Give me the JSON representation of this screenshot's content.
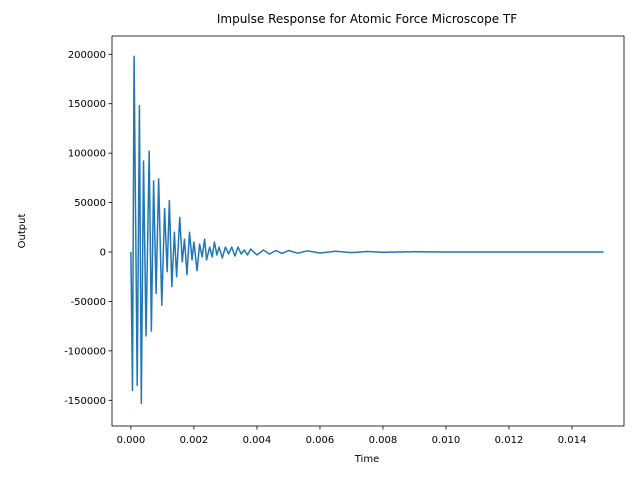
{
  "chart_data": {
    "type": "line",
    "title": "Impulse Response for Atomic Force Microscope TF",
    "xlabel": "Time",
    "ylabel": "Output",
    "x": [
      0,
      5e-05,
      0.0001,
      0.0002,
      0.00027,
      0.00033,
      0.0004,
      0.00048,
      0.00058,
      0.00065,
      0.00072,
      0.0008,
      0.00088,
      0.00098,
      0.00107,
      0.00115,
      0.00122,
      0.0013,
      0.00138,
      0.00145,
      0.00155,
      0.00163,
      0.0017,
      0.00178,
      0.00186,
      0.00194,
      0.002,
      0.0021,
      0.00218,
      0.00226,
      0.00234,
      0.0024,
      0.0025,
      0.00258,
      0.00265,
      0.00273,
      0.0028,
      0.0029,
      0.003,
      0.0031,
      0.0032,
      0.0033,
      0.0034,
      0.0035,
      0.0036,
      0.0037,
      0.0038,
      0.004,
      0.0042,
      0.0044,
      0.0046,
      0.0048,
      0.005,
      0.0053,
      0.0056,
      0.006,
      0.0065,
      0.007,
      0.0075,
      0.008,
      0.009,
      0.01,
      0.015
    ],
    "series": [
      {
        "color": "#1f77b4",
        "values": [
          0,
          -140000,
          198000,
          -135000,
          148000,
          -153000,
          92000,
          -85000,
          102000,
          -80000,
          72000,
          -42000,
          74000,
          -54000,
          44000,
          -20000,
          52000,
          -35000,
          20000,
          -25000,
          35000,
          -10000,
          13000,
          -23000,
          20000,
          -8000,
          10000,
          -19000,
          8000,
          -5000,
          13000,
          -8000,
          5000,
          -5000,
          10000,
          -3000,
          5000,
          -6000,
          5000,
          -2000,
          5000,
          -4000,
          5000,
          -2000,
          2000,
          -3000,
          3000,
          -3000,
          2000,
          -2000,
          1500,
          -1500,
          1500,
          -1200,
          1200,
          -1000,
          800,
          -600,
          500,
          -300,
          200,
          0,
          0
        ]
      }
    ],
    "xlim": [
      -0.0006,
      0.01565
    ],
    "ylim": [
      -176000,
      218500
    ],
    "xticks": [
      {
        "value": 0,
        "label": "0.000"
      },
      {
        "value": 0.002,
        "label": "0.002"
      },
      {
        "value": 0.004,
        "label": "0.004"
      },
      {
        "value": 0.006,
        "label": "0.006"
      },
      {
        "value": 0.008,
        "label": "0.008"
      },
      {
        "value": 0.01,
        "label": "0.010"
      },
      {
        "value": 0.012,
        "label": "0.012"
      },
      {
        "value": 0.014,
        "label": "0.014"
      }
    ],
    "yticks": [
      -150000,
      -100000,
      -50000,
      0,
      50000,
      100000,
      150000,
      200000
    ],
    "grid": false
  }
}
